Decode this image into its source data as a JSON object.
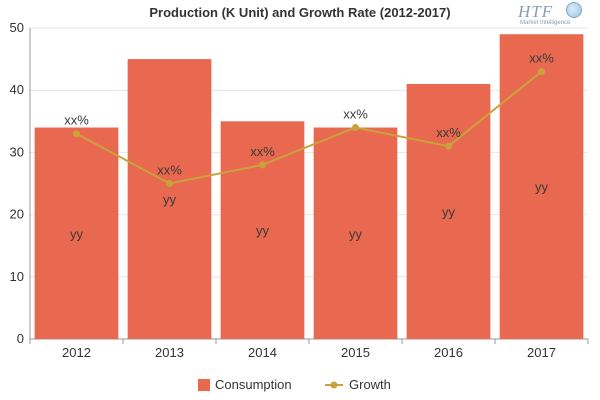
{
  "chart_data": {
    "type": "bar",
    "title": "Production (K Unit) and Growth Rate (2012-2017)",
    "categories": [
      "2012",
      "2013",
      "2014",
      "2015",
      "2016",
      "2017"
    ],
    "series": [
      {
        "name": "Consumption",
        "type": "bar",
        "color": "#E8694F",
        "values": [
          34,
          45,
          35,
          34,
          41,
          49
        ],
        "labels": [
          "yy",
          "yy",
          "yy",
          "yy",
          "yy",
          "yy"
        ]
      },
      {
        "name": "Growth",
        "type": "line",
        "color": "#C9A23C",
        "values": [
          33,
          25,
          28,
          34,
          31,
          43
        ],
        "labels": [
          "xx%",
          "xx%",
          "xx%",
          "xx%",
          "xx%",
          "xx%"
        ]
      }
    ],
    "ylim": [
      0,
      50
    ],
    "yticks": [
      0,
      10,
      20,
      30,
      40,
      50
    ],
    "grid": true,
    "legend_position": "bottom"
  },
  "logo": {
    "mark": "HTF",
    "sub": "Market Intelligence"
  }
}
